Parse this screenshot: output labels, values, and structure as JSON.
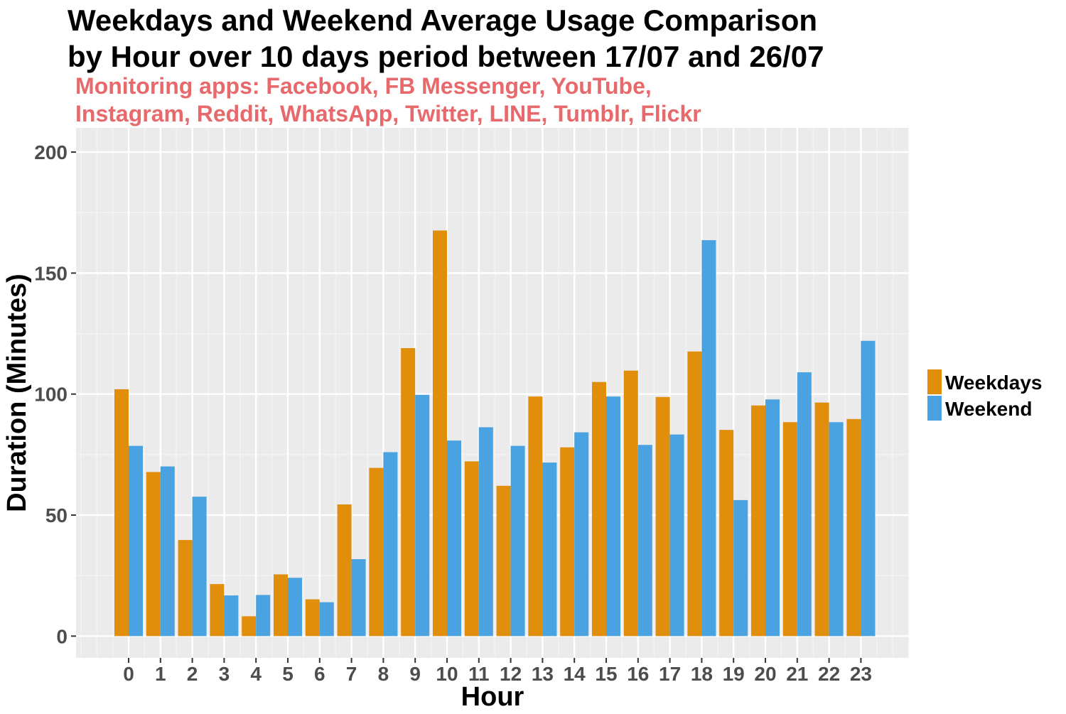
{
  "chart_data": {
    "type": "bar",
    "title": [
      "Weekdays and Weekend Average Usage Comparison",
      "by Hour over 10 days period between 17/07 and 26/07"
    ],
    "subtitle": [
      "Monitoring apps: Facebook, FB Messenger, YouTube,",
      "Instagram, Reddit, WhatsApp, Twitter, LINE, Tumblr, Flickr"
    ],
    "subtitle_color": "#e8696b",
    "xlabel": "Hour",
    "ylabel": "Duration (Minutes)",
    "categories": [
      "0",
      "1",
      "2",
      "3",
      "4",
      "5",
      "6",
      "7",
      "8",
      "9",
      "10",
      "11",
      "12",
      "13",
      "14",
      "15",
      "16",
      "17",
      "18",
      "19",
      "20",
      "21",
      "22",
      "23"
    ],
    "series": [
      {
        "name": "Weekdays",
        "color": "#e08e0b",
        "values": [
          102,
          67.8,
          39.7,
          21.5,
          8.2,
          25.5,
          15.2,
          54.4,
          69.5,
          119,
          167.6,
          72.2,
          62.1,
          99,
          78,
          105,
          109.7,
          98.8,
          117.6,
          85.2,
          95.3,
          88.4,
          96.5,
          89.7
        ]
      },
      {
        "name": "Weekend",
        "color": "#4aa3e0",
        "values": [
          78.6,
          70.1,
          57.6,
          16.8,
          17,
          24.1,
          14,
          31.8,
          76,
          99.7,
          80.8,
          86.3,
          78.6,
          71.7,
          84.2,
          99,
          79,
          83.3,
          163.6,
          56.2,
          97.8,
          109,
          88.4,
          122
        ]
      }
    ],
    "yticks": [
      0,
      50,
      100,
      150,
      200
    ],
    "ylim": [
      -9,
      210
    ],
    "grid": true,
    "legend_position": "right",
    "panel_background": "#ebebeb"
  }
}
